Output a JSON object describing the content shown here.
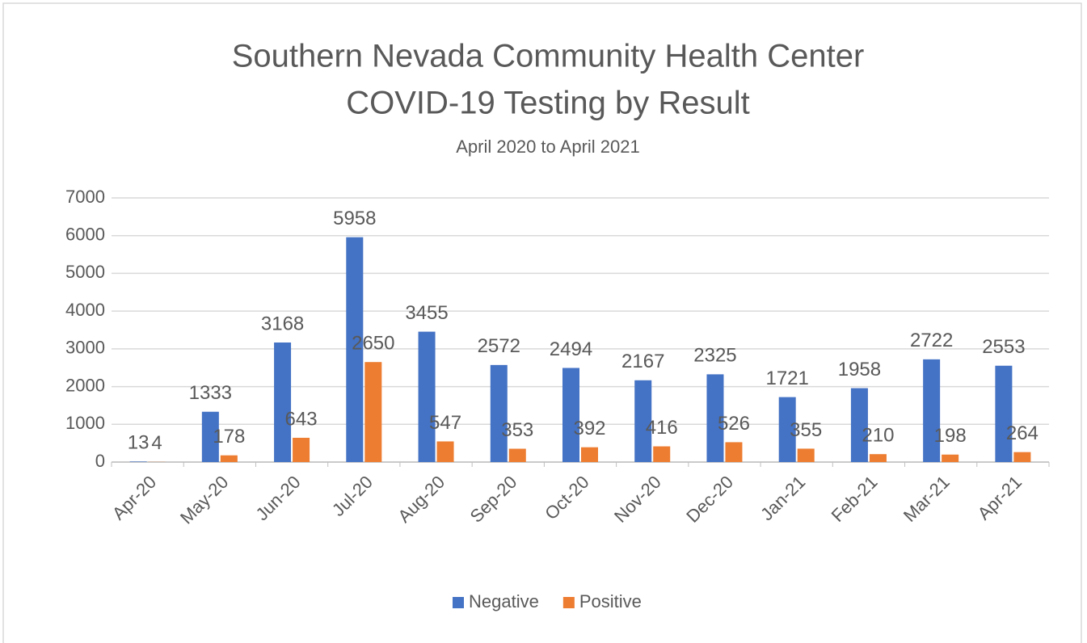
{
  "chart_data": {
    "type": "bar",
    "title": [
      "Southern Nevada Community Health Center",
      "COVID-19 Testing by Result"
    ],
    "subtitle": "April 2020 to April 2021",
    "categories": [
      "Apr-20",
      "May-20",
      "Jun-20",
      "Jul-20",
      "Aug-20",
      "Sep-20",
      "Oct-20",
      "Nov-20",
      "Dec-20",
      "Jan-21",
      "Feb-21",
      "Mar-21",
      "Apr-21"
    ],
    "series": [
      {
        "name": "Negative",
        "color": "#4472c4",
        "values": [
          13,
          1333,
          3168,
          5958,
          3455,
          2572,
          2494,
          2167,
          2325,
          1721,
          1958,
          2722,
          2553
        ]
      },
      {
        "name": "Positive",
        "color": "#ed7d31",
        "values": [
          4,
          178,
          643,
          2650,
          547,
          353,
          392,
          416,
          526,
          355,
          210,
          198,
          264
        ]
      }
    ],
    "ylim": [
      0,
      7000
    ],
    "yticks": [
      0,
      1000,
      2000,
      3000,
      4000,
      5000,
      6000,
      7000
    ],
    "grid": true,
    "legend": "bottom"
  }
}
